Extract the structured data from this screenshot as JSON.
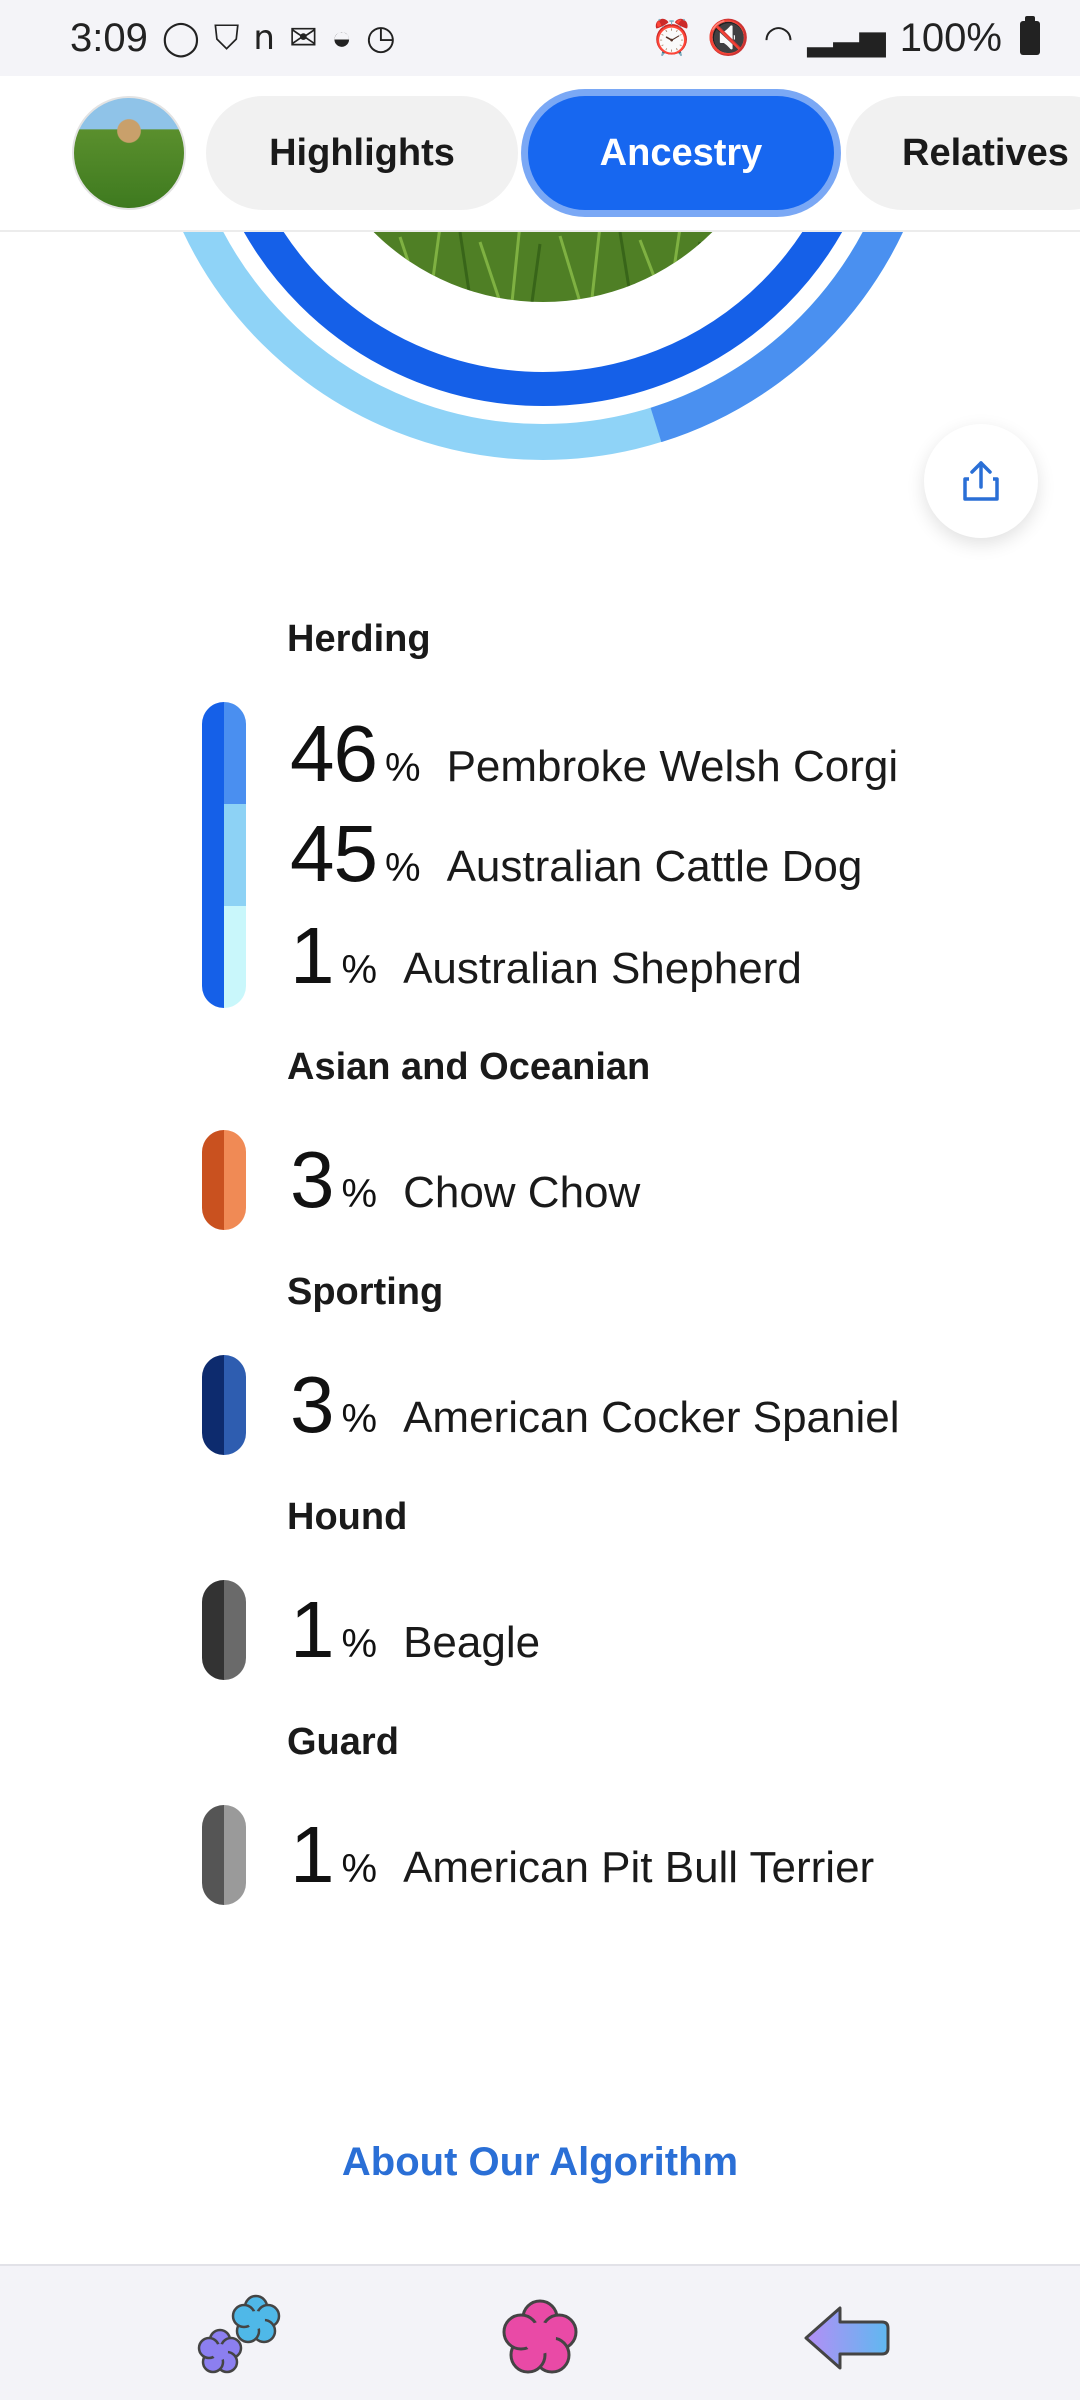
{
  "status_bar": {
    "time": "3:09",
    "battery": "100%",
    "left_icons": [
      "circle-app-icon",
      "shield-app-icon",
      "n-app-icon",
      "mail-icon",
      "pot-app-icon",
      "timer-app-icon"
    ],
    "right_icons": [
      "alarm-icon",
      "mute-icon",
      "wifi-icon",
      "signal-icon",
      "battery-icon"
    ]
  },
  "nav": {
    "tabs": [
      {
        "label": "Highlights",
        "active": false
      },
      {
        "label": "Ancestry",
        "active": true
      },
      {
        "label": "Relatives",
        "active": false
      }
    ]
  },
  "ring": {
    "colors": [
      "#1560e8",
      "#8fd3f7",
      "#4a90f0"
    ]
  },
  "groups": [
    {
      "title": "Herding",
      "color_dark": "#1560e8",
      "breeds": [
        {
          "pct": "46",
          "sign": "%",
          "name": "Pembroke Welsh Corgi",
          "color": "#4a8ff0"
        },
        {
          "pct": "45",
          "sign": "%",
          "name": "Australian Cattle Dog",
          "color": "#8dd2f5"
        },
        {
          "pct": "1",
          "sign": "%",
          "name": "Australian Shepherd",
          "color": "#c9f7fb"
        }
      ]
    },
    {
      "title": "Asian and Oceanian",
      "color_dark": "#c9511f",
      "breeds": [
        {
          "pct": "3",
          "sign": "%",
          "name": "Chow Chow",
          "color": "#f08a55"
        }
      ]
    },
    {
      "title": "Sporting",
      "color_dark": "#0d2b6e",
      "breeds": [
        {
          "pct": "3",
          "sign": "%",
          "name": "American Cocker Spaniel",
          "color": "#2e5db0"
        }
      ]
    },
    {
      "title": "Hound",
      "color_dark": "#333333",
      "breeds": [
        {
          "pct": "1",
          "sign": "%",
          "name": "Beagle",
          "color": "#6a6a6a"
        }
      ]
    },
    {
      "title": "Guard",
      "color_dark": "#555555",
      "breeds": [
        {
          "pct": "1",
          "sign": "%",
          "name": "American Pit Bull Terrier",
          "color": "#9a9a9a"
        }
      ]
    }
  ],
  "about_link": "About Our Algorithm",
  "bottom_nav": {
    "items": [
      "flowers-icon",
      "flower-icon",
      "back-arrow-icon"
    ]
  }
}
